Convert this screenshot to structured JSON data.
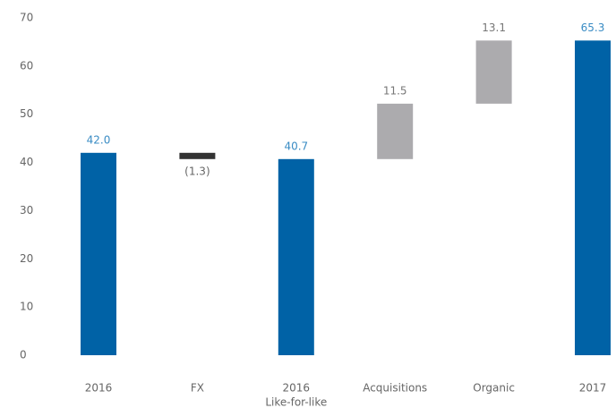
{
  "chart_data": {
    "type": "waterfall",
    "categories": [
      "2016",
      "FX",
      [
        "2016",
        "Like-for-like"
      ],
      "Acquisitions",
      "Organic",
      "2017"
    ],
    "values": [
      42.0,
      -1.3,
      40.7,
      11.5,
      13.1,
      65.3
    ],
    "value_labels": [
      "42.0",
      "(1.3)",
      "40.7",
      "11.5",
      "13.1",
      "65.3"
    ],
    "measure": [
      "absolute",
      "relative",
      "absolute",
      "relative",
      "relative",
      "absolute"
    ],
    "colors": [
      "#0062a6",
      "#333333",
      "#0062a6",
      "#acabae",
      "#acabae",
      "#0062a6"
    ],
    "label_colors": [
      "#3a8cc4",
      "#666666",
      "#3a8cc4",
      "#777777",
      "#777777",
      "#3a8cc4"
    ],
    "ylim": [
      0,
      70
    ],
    "yticks": [
      0,
      10,
      20,
      30,
      40,
      50,
      60,
      70
    ],
    "grid": false
  }
}
